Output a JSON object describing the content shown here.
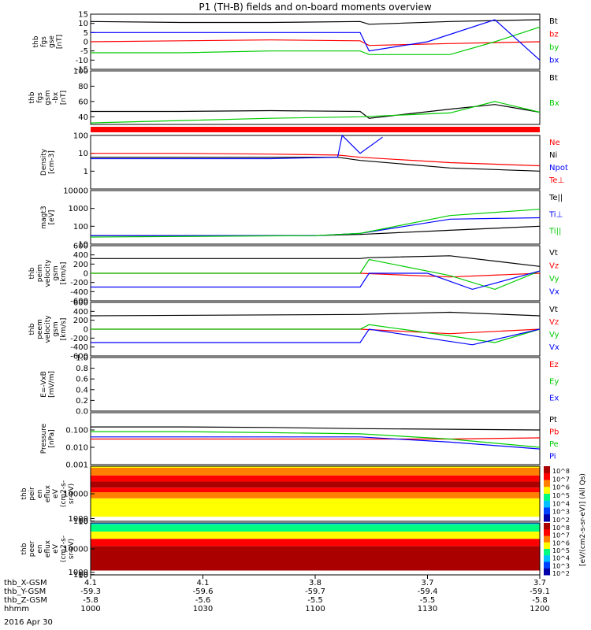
{
  "title": "P1 (TH-B) fields and on-board moments overview",
  "date_label": "2016 Apr 30",
  "ephemeris": {
    "row_labels": [
      "thb_X-GSM",
      "thb_Y-GSM",
      "thb_Z-GSM",
      "hhmm"
    ],
    "columns": [
      [
        "4.1",
        "-59.3",
        "-5.8",
        "1000"
      ],
      [
        "4.1",
        "-59.6",
        "-5.6",
        "1030"
      ],
      [
        "3.8",
        "-59.7",
        "-5.5",
        "1100"
      ],
      [
        "3.7",
        "-59.4",
        "-5.5",
        "1130"
      ],
      [
        "3.7",
        "-59.1",
        "-5.8",
        "1200"
      ]
    ]
  },
  "colorbar": {
    "label": "[eV/(cm2-s-sr-eV)] (All Qs)",
    "ticks": [
      "10^8",
      "10^7",
      "10^6",
      "10^5",
      "10^4",
      "10^3",
      "10^2"
    ]
  },
  "chart_data": [
    {
      "type": "line",
      "ylabel": [
        "thb",
        "fgs",
        "gse",
        "[nT]"
      ],
      "ylim": [
        -15,
        15
      ],
      "yticks": [
        "15",
        "10",
        "5",
        "0",
        "-5",
        "-10",
        "-15"
      ],
      "x": [
        "10:00",
        "10:30",
        "11:00",
        "11:30",
        "12:00"
      ],
      "series": [
        {
          "name": "Bt",
          "color": "#000000",
          "x": [
            0,
            20,
            40,
            60,
            62,
            80,
            100
          ],
          "values": [
            11,
            10.5,
            10.5,
            11,
            9.5,
            11,
            12
          ]
        },
        {
          "name": "bz",
          "color": "#ff0000",
          "x": [
            0,
            20,
            40,
            60,
            62,
            80,
            100
          ],
          "values": [
            0,
            0.5,
            1,
            0.5,
            -2,
            -1,
            0
          ]
        },
        {
          "name": "by",
          "color": "#00cc00",
          "x": [
            0,
            20,
            40,
            60,
            62,
            80,
            90,
            100
          ],
          "values": [
            -6,
            -6,
            -5,
            -5,
            -7,
            -7,
            0,
            8
          ]
        },
        {
          "name": "bx",
          "color": "#0000ff",
          "x": [
            0,
            20,
            40,
            60,
            62,
            75,
            90,
            100
          ],
          "values": [
            5,
            5,
            5,
            5,
            -5,
            0,
            12,
            -10
          ]
        }
      ]
    },
    {
      "type": "line",
      "ylabel": [
        "thb",
        "fgs",
        "gsm",
        "-bx",
        "[nT]"
      ],
      "ylim": [
        30,
        100
      ],
      "yticks": [
        "100",
        "80",
        "60",
        "40"
      ],
      "series": [
        {
          "name": "Bt",
          "color": "#000000",
          "x": [
            0,
            20,
            40,
            60,
            62,
            80,
            90,
            100
          ],
          "values": [
            47,
            47,
            48,
            47,
            38,
            50,
            56,
            46
          ]
        },
        {
          "name": "Bx",
          "color": "#00cc00",
          "x": [
            0,
            20,
            40,
            60,
            80,
            90,
            100
          ],
          "values": [
            32,
            35,
            38,
            40,
            45,
            60,
            46
          ]
        }
      ]
    },
    {
      "type": "area",
      "note": "Quality flag bar",
      "series": [
        {
          "color": "#ff0000",
          "x": [
            0,
            100
          ],
          "values": [
            1,
            1
          ]
        }
      ]
    },
    {
      "type": "line",
      "scale": "log",
      "ylabel": [
        "Density",
        "[cm-3]"
      ],
      "ylim": [
        0.1,
        100
      ],
      "yticks": [
        "100",
        "10",
        "1"
      ],
      "series": [
        {
          "name": "Ne",
          "color": "#ff0000",
          "x": [
            0,
            20,
            40,
            55,
            60,
            80,
            100
          ],
          "values": [
            10,
            10,
            9,
            8,
            6,
            3,
            2
          ]
        },
        {
          "name": "Ni",
          "color": "#000000",
          "x": [
            0,
            20,
            40,
            55,
            60,
            80,
            100
          ],
          "values": [
            6,
            6,
            6,
            6,
            4,
            1.5,
            1
          ]
        },
        {
          "name": "Npot",
          "color": "#0000ff",
          "x": [
            0,
            20,
            40,
            55,
            56,
            60,
            65
          ],
          "values": [
            5,
            5,
            5,
            6,
            100,
            10,
            80
          ]
        },
        {
          "name": "Te⊥",
          "color": "#ff0000",
          "x": [],
          "values": []
        }
      ]
    },
    {
      "type": "line",
      "scale": "log",
      "ylabel": [
        "magt3",
        "[eV]"
      ],
      "ylim": [
        10,
        10000
      ],
      "yticks": [
        "10000",
        "1000",
        "100",
        "10"
      ],
      "series": [
        {
          "name": "Te||",
          "color": "#000000",
          "x": [
            0,
            50,
            60,
            80,
            100
          ],
          "values": [
            30,
            30,
            35,
            60,
            100
          ]
        },
        {
          "name": "Ti⊥",
          "color": "#0000ff",
          "x": [
            0,
            50,
            60,
            80,
            100
          ],
          "values": [
            30,
            30,
            40,
            250,
            300
          ]
        },
        {
          "name": "Ti||",
          "color": "#00cc00",
          "x": [
            0,
            50,
            60,
            80,
            100
          ],
          "values": [
            25,
            30,
            40,
            400,
            900
          ]
        }
      ]
    },
    {
      "type": "line",
      "ylabel": [
        "thb",
        "peim",
        "velocity",
        "gsm",
        "[km/s]"
      ],
      "ylim": [
        -600,
        600
      ],
      "yticks": [
        "600",
        "400",
        "200",
        "0",
        "-200",
        "-400",
        "-600"
      ],
      "series": [
        {
          "name": "Vt",
          "color": "#000000",
          "x": [
            0,
            60,
            62,
            80,
            100
          ],
          "values": [
            320,
            320,
            340,
            380,
            150
          ]
        },
        {
          "name": "Vz",
          "color": "#ff0000",
          "x": [
            0,
            60,
            80,
            100
          ],
          "values": [
            0,
            0,
            -80,
            0
          ]
        },
        {
          "name": "Vy",
          "color": "#00cc00",
          "x": [
            0,
            60,
            62,
            80,
            90,
            100
          ],
          "values": [
            0,
            0,
            300,
            -50,
            -350,
            50
          ]
        },
        {
          "name": "Vx",
          "color": "#0000ff",
          "x": [
            0,
            60,
            62,
            75,
            85,
            100
          ],
          "values": [
            -300,
            -300,
            0,
            0,
            -350,
            50
          ]
        }
      ]
    },
    {
      "type": "line",
      "ylabel": [
        "thb",
        "peem",
        "velocity",
        "gsm",
        "[km/s]"
      ],
      "ylim": [
        -600,
        600
      ],
      "yticks": [
        "600",
        "400",
        "200",
        "0",
        "-200",
        "-400",
        "-600"
      ],
      "series": [
        {
          "name": "Vt",
          "color": "#000000",
          "x": [
            0,
            60,
            80,
            100
          ],
          "values": [
            300,
            330,
            380,
            300
          ]
        },
        {
          "name": "Vz",
          "color": "#ff0000",
          "x": [
            0,
            60,
            80,
            100
          ],
          "values": [
            0,
            0,
            -100,
            0
          ]
        },
        {
          "name": "Vy",
          "color": "#00cc00",
          "x": [
            0,
            60,
            62,
            80,
            90,
            100
          ],
          "values": [
            0,
            0,
            100,
            -150,
            -300,
            0
          ]
        },
        {
          "name": "Vx",
          "color": "#0000ff",
          "x": [
            0,
            60,
            62,
            75,
            85,
            100
          ],
          "values": [
            -300,
            -300,
            0,
            -200,
            -350,
            0
          ]
        }
      ]
    },
    {
      "type": "line",
      "ylabel": [
        "E=-VxB",
        "[mV/m]"
      ],
      "ylim": [
        0,
        1
      ],
      "yticks": [
        "1.0",
        "0.8",
        "0.6",
        "0.4",
        "0.2",
        "0.0"
      ],
      "series": [
        {
          "name": "Ez",
          "color": "#ff0000",
          "x": [],
          "values": []
        },
        {
          "name": "Ey",
          "color": "#00cc00",
          "x": [],
          "values": []
        },
        {
          "name": "Ex",
          "color": "#0000ff",
          "x": [],
          "values": []
        }
      ]
    },
    {
      "type": "line",
      "scale": "log",
      "ylabel": [
        "Pressure",
        "[nPa]"
      ],
      "ylim": [
        0.001,
        1
      ],
      "yticks": [
        "0.100",
        "0.010",
        "0.001"
      ],
      "series": [
        {
          "name": "Pt",
          "color": "#000000",
          "x": [
            0,
            20,
            40,
            60,
            80,
            100
          ],
          "values": [
            0.15,
            0.15,
            0.14,
            0.12,
            0.11,
            0.1
          ]
        },
        {
          "name": "Pb",
          "color": "#ff0000",
          "x": [
            0,
            20,
            40,
            60,
            80,
            100
          ],
          "values": [
            0.03,
            0.03,
            0.03,
            0.03,
            0.03,
            0.035
          ]
        },
        {
          "name": "Pe",
          "color": "#00cc00",
          "x": [
            0,
            20,
            40,
            60,
            80,
            100
          ],
          "values": [
            0.08,
            0.08,
            0.07,
            0.06,
            0.03,
            0.01
          ]
        },
        {
          "name": "Pi",
          "color": "#0000ff",
          "x": [
            0,
            20,
            40,
            60,
            80,
            100
          ],
          "values": [
            0.04,
            0.04,
            0.04,
            0.04,
            0.02,
            0.008
          ]
        }
      ]
    },
    {
      "type": "heatmap",
      "ylabel": [
        "thb",
        "peir",
        "en",
        "eflux",
        "eV",
        "(cm2-s-",
        "sr-eV)"
      ],
      "ylim": [
        5,
        20000
      ],
      "yticks": [
        "10000",
        "1000",
        "100",
        "10"
      ],
      "bands_log10_eV_to_log10_flux": [
        [
          1.0,
          4.5
        ],
        [
          1.6,
          4.8
        ],
        [
          2.2,
          6.0
        ],
        [
          2.6,
          7.0
        ],
        [
          2.9,
          8.0
        ],
        [
          3.3,
          6.8
        ],
        [
          3.7,
          5.8
        ],
        [
          4.2,
          5.0
        ]
      ]
    },
    {
      "type": "heatmap",
      "ylabel": [
        "thb",
        "peer",
        "en",
        "eflux",
        "eV",
        "(cm2-s-",
        "sr-eV)"
      ],
      "ylim": [
        5,
        20000
      ],
      "yticks": [
        "10000",
        "1000",
        "100",
        "10"
      ],
      "bands_log10_eV_to_log10_flux": [
        [
          1.0,
          8.0
        ],
        [
          1.6,
          8.0
        ],
        [
          2.2,
          7.5
        ],
        [
          2.7,
          6.5
        ],
        [
          3.2,
          4.5
        ],
        [
          3.7,
          3.5
        ],
        [
          4.2,
          3.0
        ]
      ]
    }
  ]
}
